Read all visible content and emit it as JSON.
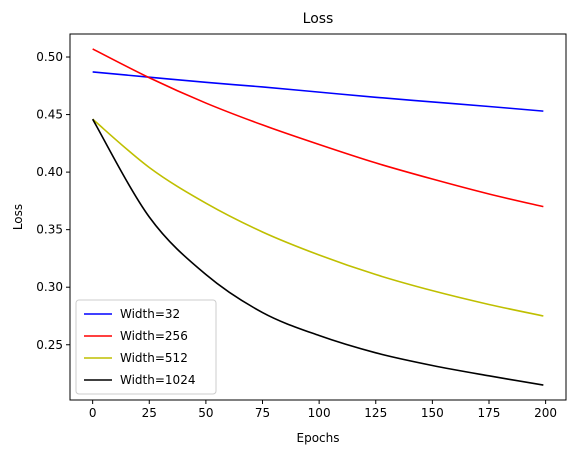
{
  "chart_data": {
    "type": "line",
    "title": "Loss",
    "xlabel": "Epochs",
    "ylabel": "Loss",
    "xlim": [
      -10,
      209
    ],
    "ylim": [
      0.202,
      0.52
    ],
    "xticks": [
      0,
      25,
      50,
      75,
      100,
      125,
      150,
      175,
      200
    ],
    "xtick_labels": [
      "0",
      "25",
      "50",
      "75",
      "100",
      "125",
      "150",
      "175",
      "200"
    ],
    "yticks": [
      0.25,
      0.3,
      0.35,
      0.4,
      0.45,
      0.5
    ],
    "ytick_labels": [
      "0.25",
      "0.30",
      "0.35",
      "0.40",
      "0.45",
      "0.50"
    ],
    "grid": false,
    "legend_position": "lower-left",
    "x": [
      0,
      25,
      50,
      75,
      100,
      125,
      150,
      175,
      199
    ],
    "series": [
      {
        "name": "Width=32",
        "color": "#0000ff",
        "values": [
          0.487,
          0.4825,
          0.478,
          0.474,
          0.4695,
          0.465,
          0.461,
          0.457,
          0.453
        ]
      },
      {
        "name": "Width=256",
        "color": "#ff0000",
        "values": [
          0.507,
          0.482,
          0.46,
          0.441,
          0.424,
          0.408,
          0.394,
          0.381,
          0.37
        ]
      },
      {
        "name": "Width=512",
        "color": "#bfbf00",
        "values": [
          0.446,
          0.404,
          0.373,
          0.348,
          0.328,
          0.311,
          0.297,
          0.285,
          0.275
        ]
      },
      {
        "name": "Width=1024",
        "color": "#000000",
        "values": [
          0.446,
          0.361,
          0.311,
          0.278,
          0.258,
          0.243,
          0.232,
          0.223,
          0.215
        ]
      }
    ]
  }
}
